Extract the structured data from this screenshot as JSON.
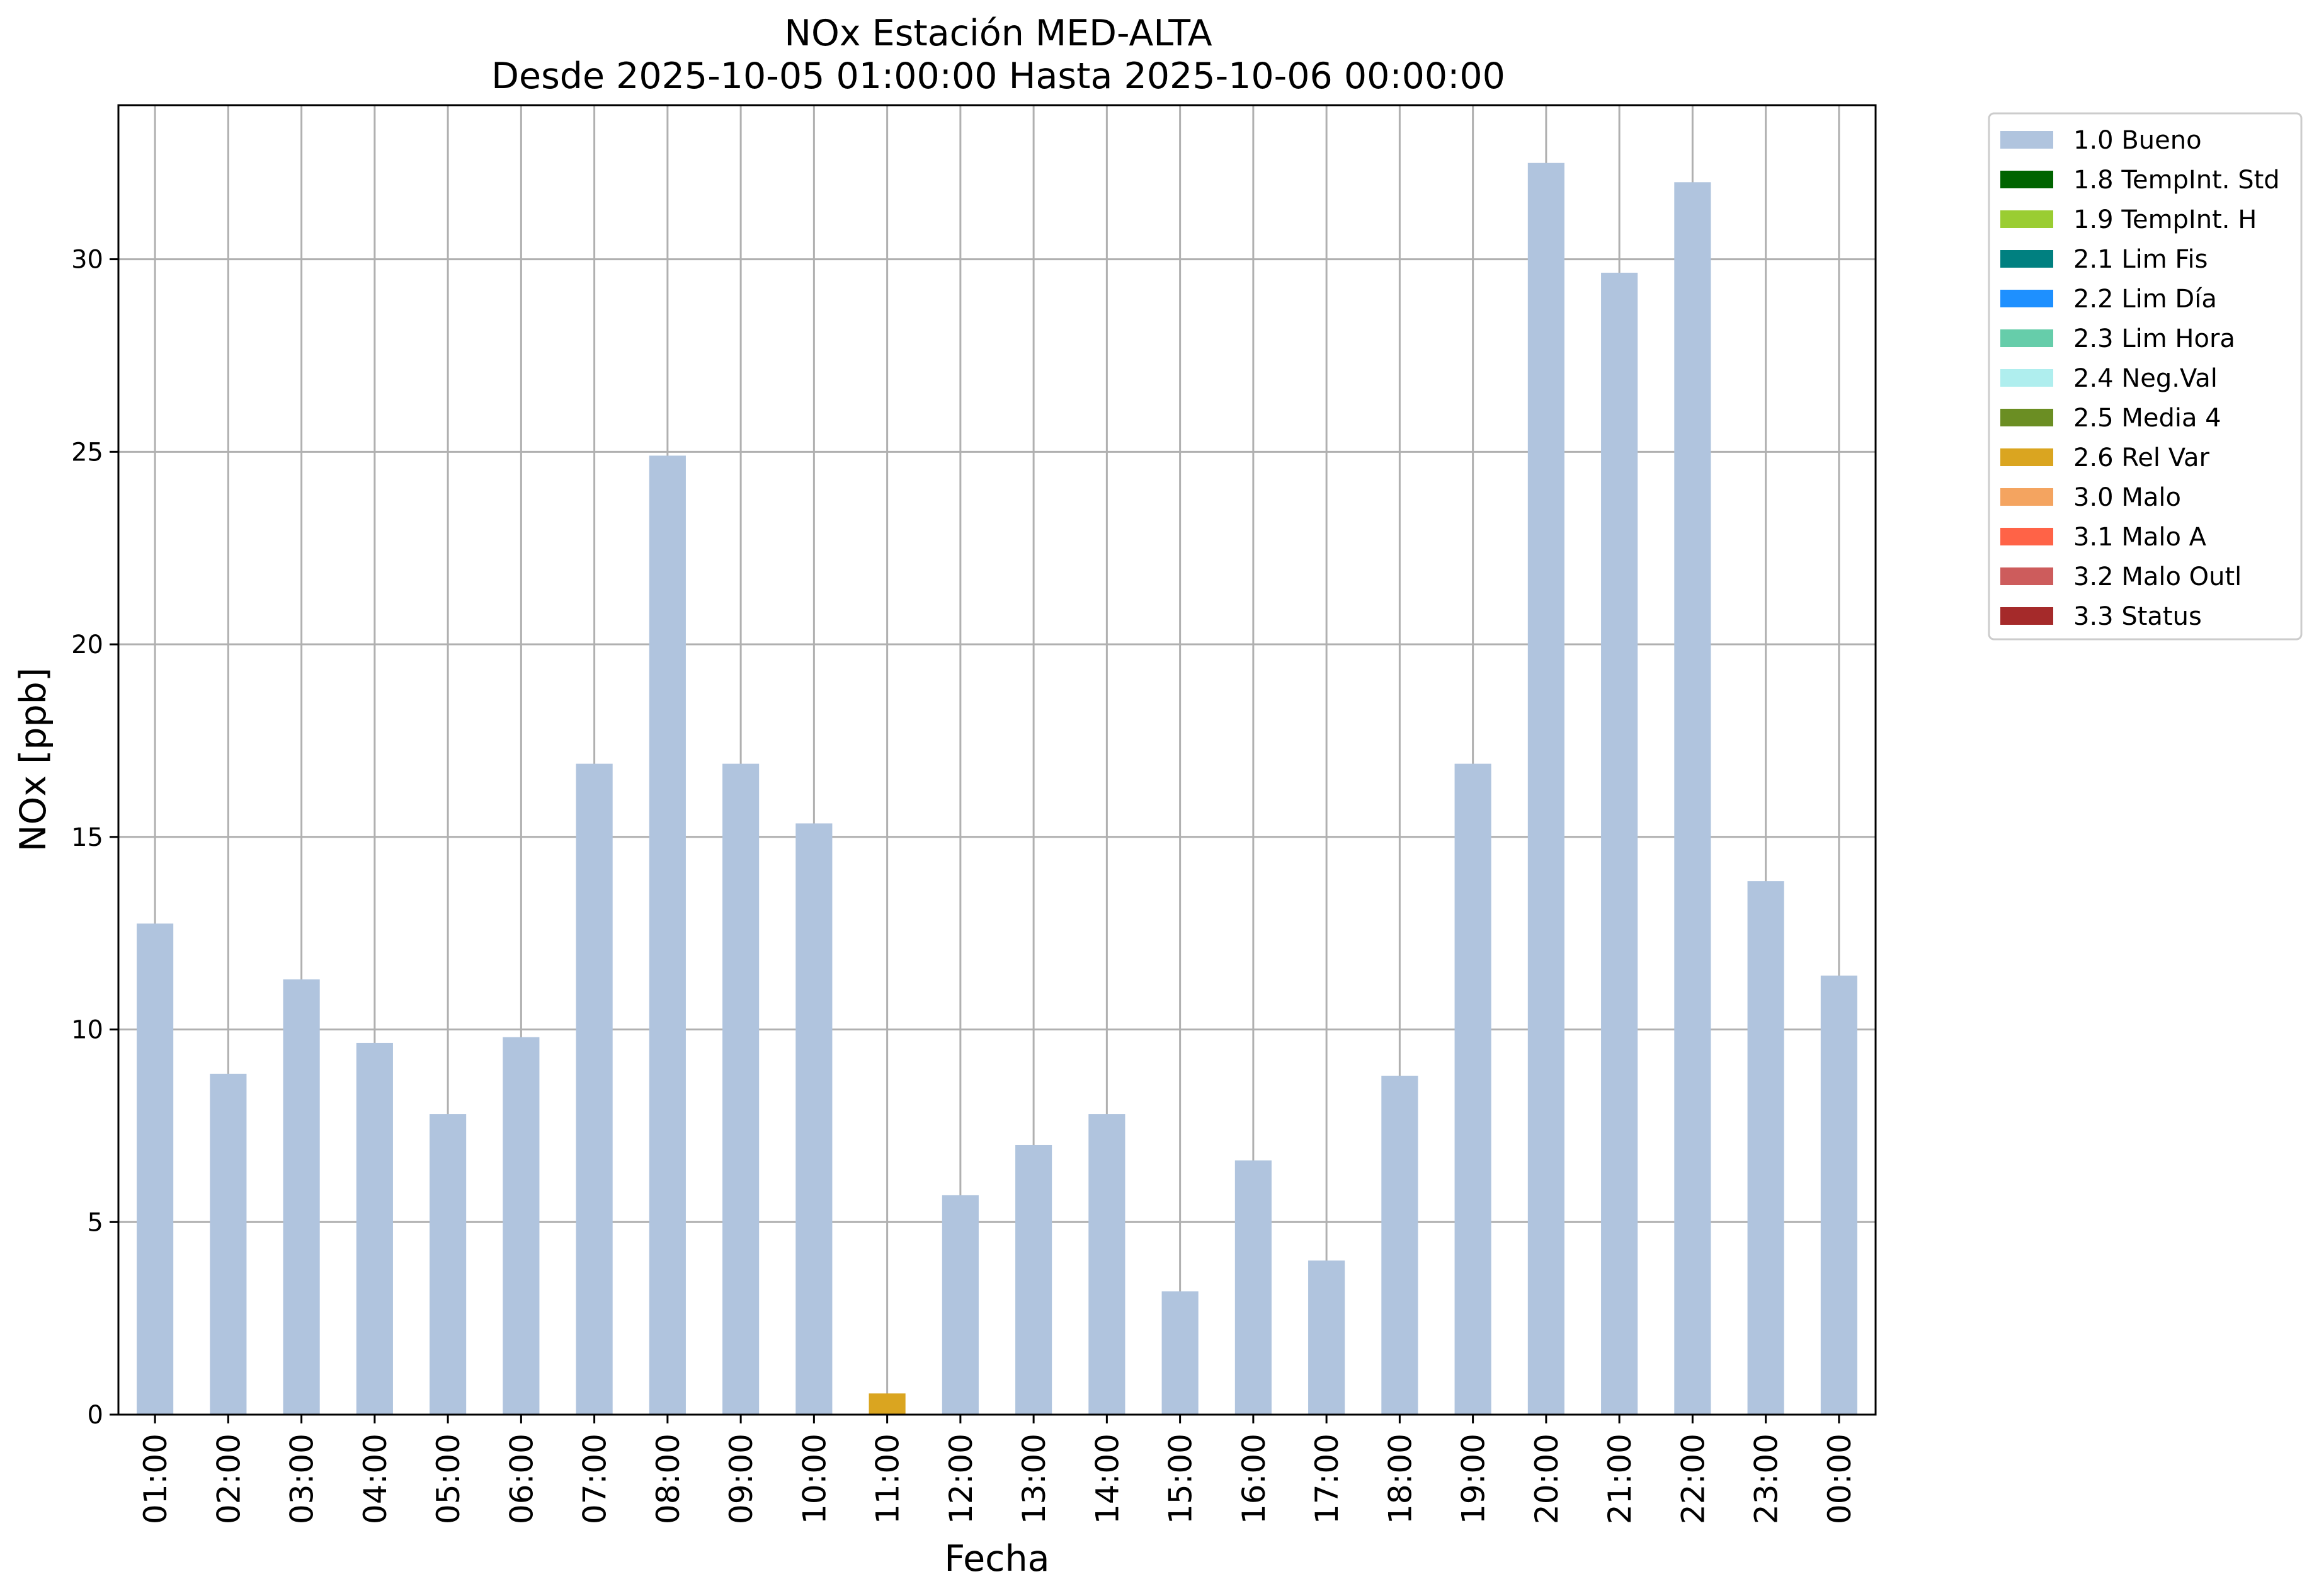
{
  "chart_data": {
    "type": "bar",
    "stacked": true,
    "title": "NOx Estación MED-ALTA",
    "subtitle": "Desde 2025-10-05 01:00:00 Hasta 2025-10-06 00:00:00",
    "xlabel": "Fecha",
    "ylabel": "NOx [ppb]",
    "ylim": [
      0,
      34
    ],
    "yticks": [
      0,
      5,
      10,
      15,
      20,
      25,
      30
    ],
    "grid": true,
    "legend_position": "outside-top-right",
    "categories": [
      "01:00",
      "02:00",
      "03:00",
      "04:00",
      "05:00",
      "06:00",
      "07:00",
      "08:00",
      "09:00",
      "10:00",
      "11:00",
      "12:00",
      "13:00",
      "14:00",
      "15:00",
      "16:00",
      "17:00",
      "18:00",
      "19:00",
      "20:00",
      "21:00",
      "22:00",
      "23:00",
      "00:00"
    ],
    "series": [
      {
        "name": "1.0 Bueno",
        "color": "#b0c4de",
        "values": [
          12.75,
          8.85,
          11.3,
          9.65,
          7.8,
          9.8,
          16.9,
          24.9,
          16.9,
          15.35,
          0,
          5.7,
          7.0,
          7.8,
          3.2,
          6.6,
          4.0,
          8.8,
          16.9,
          32.5,
          29.65,
          32.0,
          13.85,
          11.4
        ]
      },
      {
        "name": "1.8 TempInt. Std",
        "color": "#006400",
        "values": [
          0,
          0,
          0,
          0,
          0,
          0,
          0,
          0,
          0,
          0,
          0,
          0,
          0,
          0,
          0,
          0,
          0,
          0,
          0,
          0,
          0,
          0,
          0,
          0
        ]
      },
      {
        "name": "1.9 TempInt. H",
        "color": "#9acd32",
        "values": [
          0,
          0,
          0,
          0,
          0,
          0,
          0,
          0,
          0,
          0,
          0,
          0,
          0,
          0,
          0,
          0,
          0,
          0,
          0,
          0,
          0,
          0,
          0,
          0
        ]
      },
      {
        "name": "2.1 Lim Fis",
        "color": "#008080",
        "values": [
          0,
          0,
          0,
          0,
          0,
          0,
          0,
          0,
          0,
          0,
          0,
          0,
          0,
          0,
          0,
          0,
          0,
          0,
          0,
          0,
          0,
          0,
          0,
          0
        ]
      },
      {
        "name": "2.2 Lim Día",
        "color": "#1e90ff",
        "values": [
          0,
          0,
          0,
          0,
          0,
          0,
          0,
          0,
          0,
          0,
          0,
          0,
          0,
          0,
          0,
          0,
          0,
          0,
          0,
          0,
          0,
          0,
          0,
          0
        ]
      },
      {
        "name": "2.3 Lim Hora",
        "color": "#66cdaa",
        "values": [
          0,
          0,
          0,
          0,
          0,
          0,
          0,
          0,
          0,
          0,
          0,
          0,
          0,
          0,
          0,
          0,
          0,
          0,
          0,
          0,
          0,
          0,
          0,
          0
        ]
      },
      {
        "name": "2.4 Neg.Val",
        "color": "#afeeee",
        "values": [
          0,
          0,
          0,
          0,
          0,
          0,
          0,
          0,
          0,
          0,
          0,
          0,
          0,
          0,
          0,
          0,
          0,
          0,
          0,
          0,
          0,
          0,
          0,
          0
        ]
      },
      {
        "name": "2.5 Media 4",
        "color": "#6b8e23",
        "values": [
          0,
          0,
          0,
          0,
          0,
          0,
          0,
          0,
          0,
          0,
          0,
          0,
          0,
          0,
          0,
          0,
          0,
          0,
          0,
          0,
          0,
          0,
          0,
          0
        ]
      },
      {
        "name": "2.6 Rel Var",
        "color": "#daa520",
        "values": [
          0,
          0,
          0,
          0,
          0,
          0,
          0,
          0,
          0,
          0,
          0.55,
          0,
          0,
          0,
          0,
          0,
          0,
          0,
          0,
          0,
          0,
          0,
          0,
          0
        ]
      },
      {
        "name": "3.0 Malo",
        "color": "#f4a460",
        "values": [
          0,
          0,
          0,
          0,
          0,
          0,
          0,
          0,
          0,
          0,
          0,
          0,
          0,
          0,
          0,
          0,
          0,
          0,
          0,
          0,
          0,
          0,
          0,
          0
        ]
      },
      {
        "name": "3.1 Malo A",
        "color": "#ff6347",
        "values": [
          0,
          0,
          0,
          0,
          0,
          0,
          0,
          0,
          0,
          0,
          0,
          0,
          0,
          0,
          0,
          0,
          0,
          0,
          0,
          0,
          0,
          0,
          0,
          0
        ]
      },
      {
        "name": "3.2 Malo Outl",
        "color": "#cd5c5c",
        "values": [
          0,
          0,
          0,
          0,
          0,
          0,
          0,
          0,
          0,
          0,
          0,
          0,
          0,
          0,
          0,
          0,
          0,
          0,
          0,
          0,
          0,
          0,
          0,
          0
        ]
      },
      {
        "name": "3.3 Status",
        "color": "#a52a2a",
        "values": [
          0,
          0,
          0,
          0,
          0,
          0,
          0,
          0,
          0,
          0,
          0,
          0,
          0,
          0,
          0,
          0,
          0,
          0,
          0,
          0,
          0,
          0,
          0,
          0
        ]
      }
    ]
  }
}
